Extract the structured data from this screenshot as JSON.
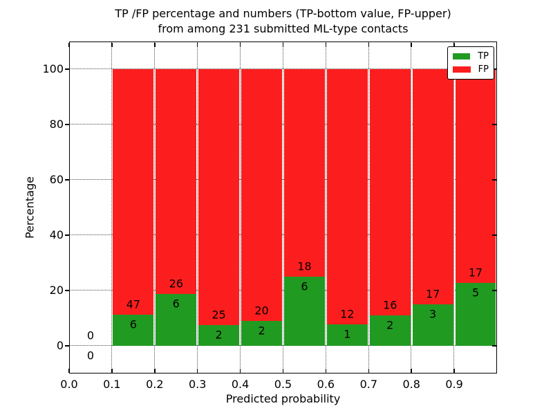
{
  "chart_data": {
    "type": "bar",
    "variant": "stacked-normalized-100pct",
    "title_lines": [
      "TP /FP percentage and numbers (TP-bottom value, FP-upper)",
      "from among 231 submitted ML-type contacts"
    ],
    "xlabel": "Predicted probability",
    "ylabel": "Percentage",
    "total_contacts": 231,
    "x_tick_labels": [
      "0.0",
      "0.1",
      "0.2",
      "0.3",
      "0.4",
      "0.5",
      "0.6",
      "0.7",
      "0.8",
      "0.9"
    ],
    "y_tick_values": [
      0,
      20,
      40,
      60,
      80,
      100
    ],
    "xlim": [
      0.0,
      1.0
    ],
    "ylim": [
      -10,
      110
    ],
    "grid": {
      "style": "dotted",
      "on": true
    },
    "colors": {
      "tp": "#219a21",
      "fp": "#fc1e1e"
    },
    "legend": {
      "position": "upper-right",
      "entries": [
        {
          "label": "TP",
          "color": "#219a21"
        },
        {
          "label": "FP",
          "color": "#fc1e1e"
        }
      ]
    },
    "bins": [
      {
        "range": [
          0.0,
          0.1
        ],
        "tp": 0,
        "fp": 0
      },
      {
        "range": [
          0.1,
          0.2
        ],
        "tp": 6,
        "fp": 47
      },
      {
        "range": [
          0.2,
          0.3
        ],
        "tp": 6,
        "fp": 26
      },
      {
        "range": [
          0.3,
          0.4
        ],
        "tp": 2,
        "fp": 25
      },
      {
        "range": [
          0.4,
          0.5
        ],
        "tp": 2,
        "fp": 20
      },
      {
        "range": [
          0.5,
          0.6
        ],
        "tp": 6,
        "fp": 18
      },
      {
        "range": [
          0.6,
          0.7
        ],
        "tp": 1,
        "fp": 12
      },
      {
        "range": [
          0.7,
          0.8
        ],
        "tp": 2,
        "fp": 16
      },
      {
        "range": [
          0.8,
          0.9
        ],
        "tp": 3,
        "fp": 17
      },
      {
        "range": [
          0.9,
          1.0
        ],
        "tp": 5,
        "fp": 17
      }
    ]
  }
}
